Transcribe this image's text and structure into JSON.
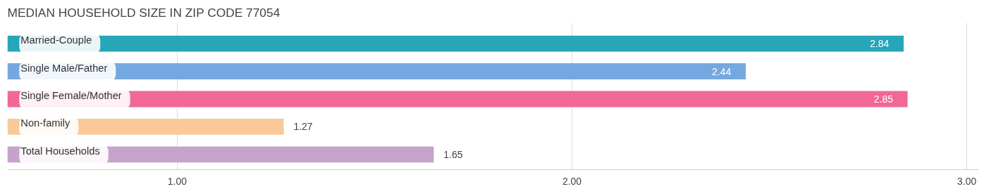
{
  "chart_data": {
    "type": "bar",
    "orientation": "horizontal",
    "title": "MEDIAN HOUSEHOLD SIZE IN ZIP CODE 77054",
    "categories": [
      "Married-Couple",
      "Single Male/Father",
      "Single Female/Mother",
      "Non-family",
      "Total Households"
    ],
    "values": [
      2.84,
      2.44,
      2.85,
      1.27,
      1.65
    ],
    "colors": [
      "#26a6b8",
      "#75a8e0",
      "#f06893",
      "#f9c99a",
      "#c6a2cc"
    ],
    "xlim": [
      0.57,
      3.03
    ],
    "xticks": [
      {
        "value": 1,
        "label": "1.00"
      },
      {
        "value": 2,
        "label": "2.00"
      },
      {
        "value": 3,
        "label": "3.00"
      }
    ],
    "grid": "x",
    "data_labels": true
  }
}
